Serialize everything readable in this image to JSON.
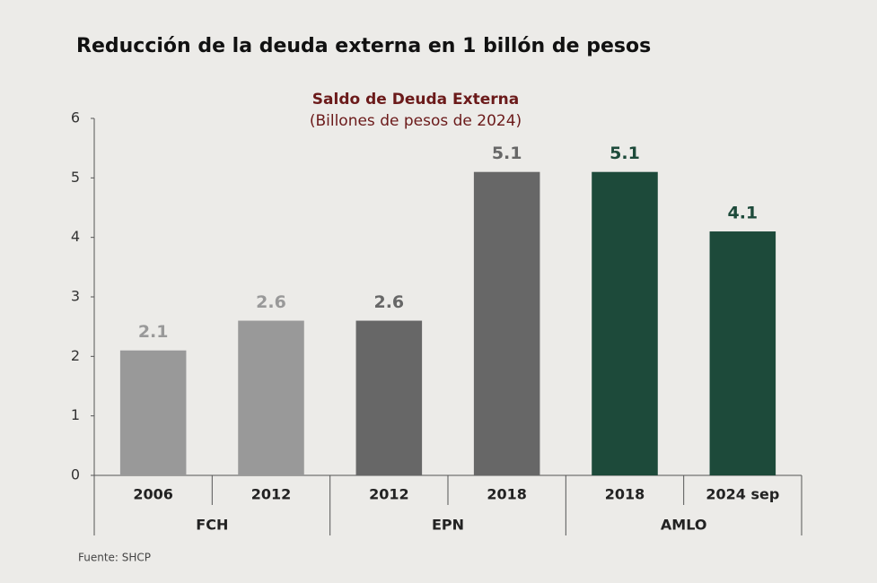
{
  "chart_data": {
    "type": "grouped_bar",
    "title": "Reducción de la deuda externa en 1 billón de pesos",
    "subtitle": "Saldo de Deuda Externa",
    "subtitle2": "(Billones de pesos de 2024)",
    "groups": [
      {
        "name": "FCH",
        "color": "#999999",
        "categories": [
          "2006",
          "2012"
        ],
        "values": [
          2.1,
          2.6
        ]
      },
      {
        "name": "EPN",
        "color": "#676767",
        "categories": [
          "2012",
          "2018"
        ],
        "values": [
          2.6,
          5.1
        ]
      },
      {
        "name": "AMLO",
        "color": "#1d4a3a",
        "categories": [
          "2018",
          "2024 sep"
        ],
        "values": [
          5.1,
          4.1
        ]
      }
    ],
    "ylim": [
      0,
      6
    ],
    "yticks": [
      0,
      1,
      2,
      3,
      4,
      5,
      6
    ],
    "grid": false,
    "source": "Fuente: SHCP"
  }
}
